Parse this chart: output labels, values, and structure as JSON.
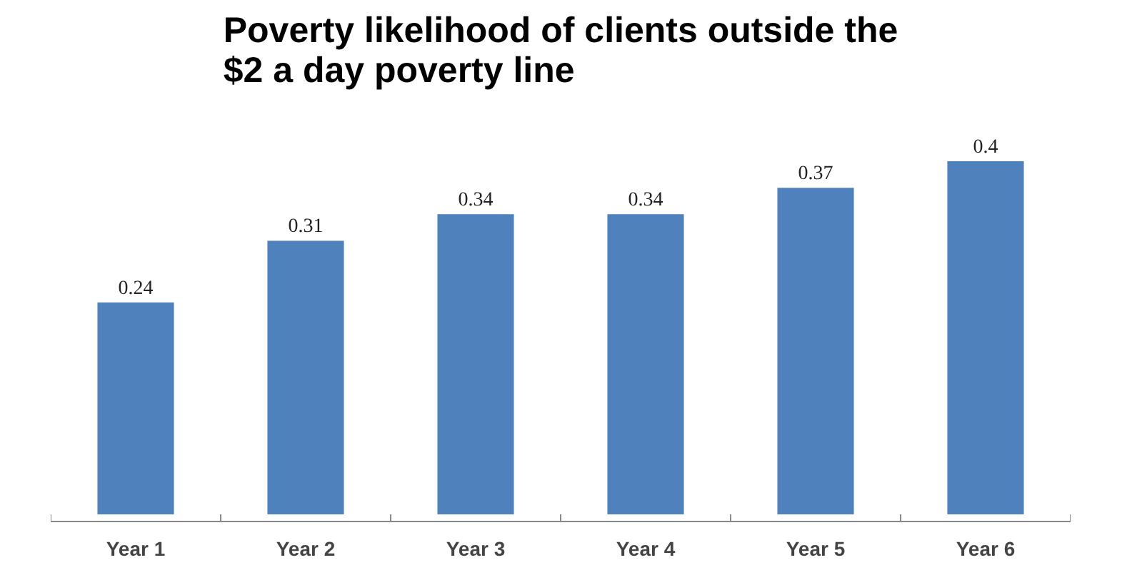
{
  "chart_data": {
    "type": "bar",
    "title": "Poverty likelihood of clients outside the\n$2 a day poverty line",
    "categories": [
      "Year 1",
      "Year 2",
      "Year 3",
      "Year 4",
      "Year 5",
      "Year 6"
    ],
    "values": [
      0.24,
      0.31,
      0.34,
      0.34,
      0.37,
      0.4
    ],
    "value_labels": [
      "0.24",
      "0.31",
      "0.34",
      "0.34",
      "0.37",
      "0.4"
    ],
    "color": "#4f81bd"
  }
}
